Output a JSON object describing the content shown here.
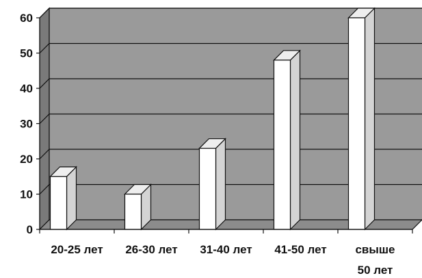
{
  "chart_data": {
    "type": "bar",
    "categories": [
      "20-25 лет",
      "26-30 лет",
      "31-40 лет",
      "41-50 лет",
      "свыше 50 лет"
    ],
    "category_lines": [
      [
        "20-25 лет"
      ],
      [
        "26-30 лет"
      ],
      [
        "31-40 лет"
      ],
      [
        "41-50 лет"
      ],
      [
        "свыше",
        "50 лет"
      ]
    ],
    "values": [
      15,
      10,
      23,
      48,
      60
    ],
    "ylim": [
      0,
      60
    ],
    "yticks": [
      "0",
      "10",
      "20",
      "30",
      "40",
      "50",
      "60"
    ],
    "ytick_values": [
      0,
      10,
      20,
      30,
      40,
      50,
      60
    ],
    "grid": true,
    "style": "3d-column",
    "colors": {
      "wall": "#9a9a9a",
      "wall_side": "#7a7a7a",
      "floor": "#8c8c8c",
      "bar_front": "#ffffff",
      "bar_side": "#d4d4d4",
      "bar_top": "#eeeeee",
      "outline": "#111111"
    }
  }
}
